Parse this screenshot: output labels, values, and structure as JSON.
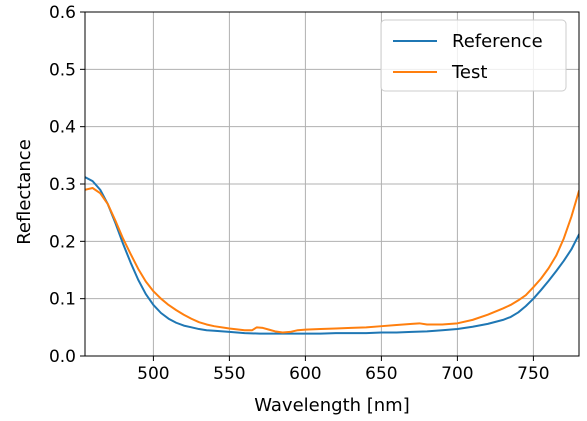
{
  "chart_data": {
    "type": "line",
    "xlabel": "Wavelength [nm]",
    "ylabel": "Reflectance",
    "xlim": [
      455,
      780
    ],
    "ylim": [
      0.0,
      0.6
    ],
    "xticks": [
      500,
      550,
      600,
      650,
      700,
      750
    ],
    "xtick_labels": [
      "500",
      "550",
      "600",
      "650",
      "700",
      "750"
    ],
    "yticks": [
      0.0,
      0.1,
      0.2,
      0.3,
      0.4,
      0.5,
      0.6
    ],
    "ytick_labels": [
      "0.0",
      "0.1",
      "0.2",
      "0.3",
      "0.4",
      "0.5",
      "0.6"
    ],
    "grid": true,
    "legend": "top-right",
    "series": [
      {
        "name": "Reference",
        "color": "#1f77b4",
        "x": [
          455,
          460,
          465,
          470,
          475,
          480,
          485,
          490,
          495,
          500,
          505,
          510,
          515,
          520,
          525,
          530,
          535,
          540,
          550,
          560,
          570,
          580,
          590,
          600,
          610,
          620,
          630,
          640,
          650,
          660,
          670,
          680,
          690,
          700,
          710,
          720,
          730,
          735,
          740,
          745,
          750,
          755,
          760,
          765,
          770,
          775,
          780
        ],
        "values": [
          0.312,
          0.305,
          0.29,
          0.265,
          0.232,
          0.196,
          0.163,
          0.133,
          0.108,
          0.089,
          0.075,
          0.065,
          0.058,
          0.053,
          0.05,
          0.047,
          0.045,
          0.044,
          0.042,
          0.04,
          0.039,
          0.039,
          0.039,
          0.039,
          0.039,
          0.04,
          0.04,
          0.04,
          0.041,
          0.041,
          0.042,
          0.043,
          0.045,
          0.047,
          0.051,
          0.056,
          0.063,
          0.068,
          0.076,
          0.087,
          0.1,
          0.115,
          0.131,
          0.148,
          0.166,
          0.186,
          0.212
        ]
      },
      {
        "name": "Test",
        "color": "#ff7f0e",
        "x": [
          455,
          460,
          465,
          470,
          475,
          480,
          485,
          490,
          495,
          500,
          505,
          510,
          515,
          520,
          525,
          530,
          535,
          540,
          550,
          560,
          565,
          568,
          572,
          576,
          580,
          585,
          590,
          595,
          600,
          610,
          620,
          630,
          640,
          650,
          660,
          670,
          675,
          680,
          690,
          700,
          710,
          720,
          730,
          735,
          740,
          745,
          750,
          755,
          760,
          765,
          770,
          775,
          780
        ],
        "values": [
          0.29,
          0.293,
          0.284,
          0.265,
          0.236,
          0.205,
          0.178,
          0.152,
          0.13,
          0.113,
          0.1,
          0.089,
          0.08,
          0.072,
          0.065,
          0.059,
          0.055,
          0.052,
          0.048,
          0.045,
          0.045,
          0.05,
          0.049,
          0.046,
          0.043,
          0.041,
          0.042,
          0.045,
          0.046,
          0.047,
          0.048,
          0.049,
          0.05,
          0.052,
          0.054,
          0.056,
          0.057,
          0.055,
          0.055,
          0.057,
          0.063,
          0.072,
          0.083,
          0.089,
          0.097,
          0.106,
          0.12,
          0.135,
          0.153,
          0.175,
          0.205,
          0.243,
          0.288
        ]
      }
    ]
  }
}
